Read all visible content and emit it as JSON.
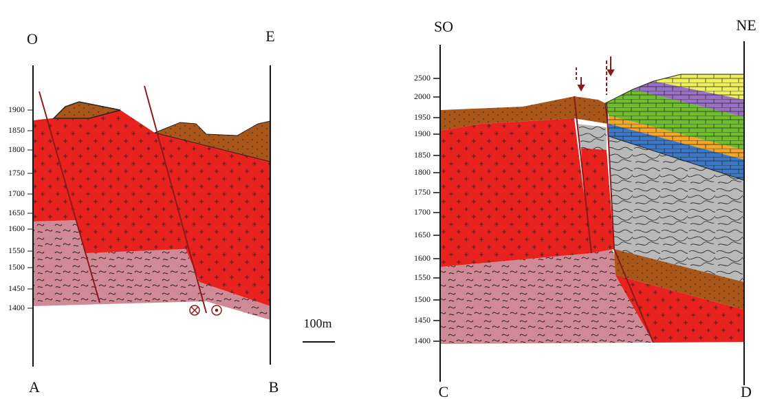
{
  "left_section": {
    "top_labels": [
      "O",
      "E"
    ],
    "bottom_labels": [
      "A",
      "B"
    ],
    "elevations": [
      1900,
      1850,
      1800,
      1750,
      1700,
      1650,
      1600,
      1550,
      1500,
      1450,
      1400
    ]
  },
  "right_section": {
    "top_labels": [
      "SO",
      "NE"
    ],
    "bottom_labels": [
      "C",
      "D"
    ],
    "elevations": [
      2500,
      2000,
      1950,
      1900,
      1850,
      1800,
      1750,
      1700,
      1650,
      1600,
      1550,
      1500,
      1450,
      1400
    ]
  },
  "scale_label": "100m"
}
